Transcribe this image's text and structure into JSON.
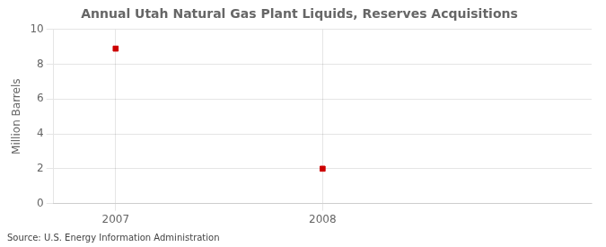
{
  "chart_data": {
    "type": "scatter",
    "title": "Annual Utah Natural Gas Plant Liquids, Reserves Acquisitions",
    "ylabel": "Million Barrels",
    "source": "Source: U.S. Energy Information Administration",
    "x": [
      2007,
      2008
    ],
    "values": [
      8.9,
      2.0
    ],
    "xlim": [
      2006.7,
      2009.3
    ],
    "ylim": [
      0,
      10
    ],
    "xticks": [
      2007,
      2008
    ],
    "yticks": [
      0,
      2,
      4,
      6,
      8,
      10
    ],
    "color": "#cc0000",
    "marker": "square",
    "grid": true
  }
}
